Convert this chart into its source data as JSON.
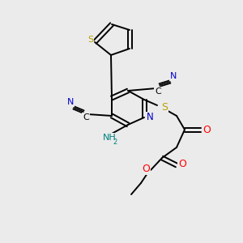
{
  "background_color": "#ebebeb",
  "bond_color": "#000000",
  "atom_colors": {
    "S": "#b8a000",
    "N": "#0000cc",
    "O": "#ff0000",
    "C": "#000000",
    "H": "#008080"
  }
}
